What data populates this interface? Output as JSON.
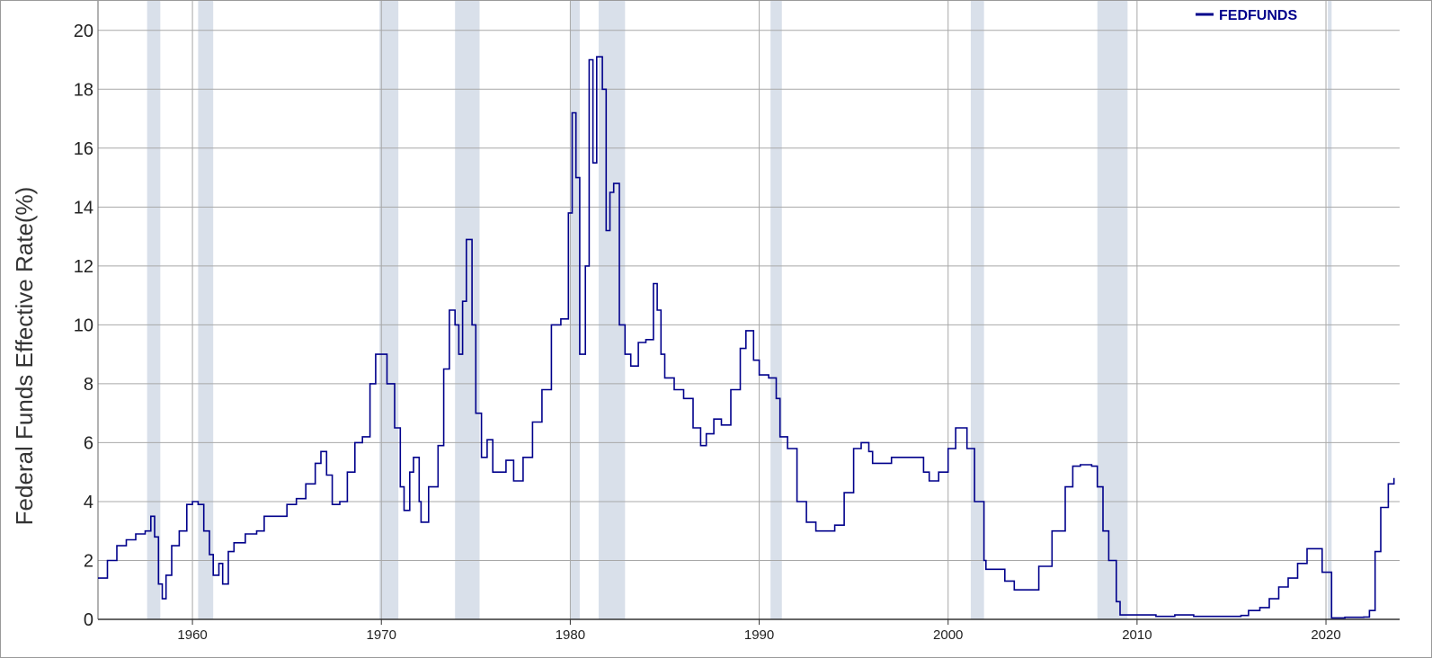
{
  "chart_data": {
    "type": "line",
    "title": "",
    "xlabel": "",
    "ylabel": "Federal Funds Effective Rate(%)",
    "xlim": [
      1955.0,
      2023.9
    ],
    "ylim": [
      0,
      21
    ],
    "x_ticks": [
      1960,
      1970,
      1980,
      1990,
      2000,
      2010,
      2020
    ],
    "y_ticks": [
      0,
      2,
      4,
      6,
      8,
      10,
      12,
      14,
      16,
      18,
      20
    ],
    "grid": true,
    "legend": "top-right",
    "recession_color": "#d9e0ea",
    "line_color": "#00008b",
    "recessions": [
      [
        1957.6,
        1958.3
      ],
      [
        1960.3,
        1961.1
      ],
      [
        1969.9,
        1970.9
      ],
      [
        1973.9,
        1975.2
      ],
      [
        1980.0,
        1980.5
      ],
      [
        1981.5,
        1982.9
      ],
      [
        1990.6,
        1991.2
      ],
      [
        2001.2,
        2001.9
      ],
      [
        2007.9,
        2009.5
      ],
      [
        2020.1,
        2020.3
      ]
    ],
    "series": [
      {
        "name": "FEDFUNDS",
        "points": [
          [
            1955.0,
            1.4
          ],
          [
            1955.5,
            2.0
          ],
          [
            1956.0,
            2.5
          ],
          [
            1956.5,
            2.7
          ],
          [
            1957.0,
            2.9
          ],
          [
            1957.5,
            3.0
          ],
          [
            1957.8,
            3.5
          ],
          [
            1958.0,
            2.8
          ],
          [
            1958.2,
            1.2
          ],
          [
            1958.4,
            0.7
          ],
          [
            1958.6,
            1.5
          ],
          [
            1958.9,
            2.5
          ],
          [
            1959.3,
            3.0
          ],
          [
            1959.7,
            3.9
          ],
          [
            1960.0,
            4.0
          ],
          [
            1960.3,
            3.9
          ],
          [
            1960.6,
            3.0
          ],
          [
            1960.9,
            2.2
          ],
          [
            1961.1,
            1.5
          ],
          [
            1961.4,
            1.9
          ],
          [
            1961.6,
            1.2
          ],
          [
            1961.9,
            2.3
          ],
          [
            1962.2,
            2.6
          ],
          [
            1962.8,
            2.9
          ],
          [
            1963.4,
            3.0
          ],
          [
            1963.8,
            3.5
          ],
          [
            1964.5,
            3.5
          ],
          [
            1965.0,
            3.9
          ],
          [
            1965.5,
            4.1
          ],
          [
            1966.0,
            4.6
          ],
          [
            1966.5,
            5.3
          ],
          [
            1966.8,
            5.7
          ],
          [
            1967.1,
            4.9
          ],
          [
            1967.4,
            3.9
          ],
          [
            1967.8,
            4.0
          ],
          [
            1968.2,
            5.0
          ],
          [
            1968.6,
            6.0
          ],
          [
            1969.0,
            6.2
          ],
          [
            1969.4,
            8.0
          ],
          [
            1969.7,
            9.0
          ],
          [
            1970.0,
            9.0
          ],
          [
            1970.3,
            8.0
          ],
          [
            1970.7,
            6.5
          ],
          [
            1971.0,
            4.5
          ],
          [
            1971.2,
            3.7
          ],
          [
            1971.5,
            5.0
          ],
          [
            1971.7,
            5.5
          ],
          [
            1972.0,
            4.0
          ],
          [
            1972.1,
            3.3
          ],
          [
            1972.5,
            4.5
          ],
          [
            1973.0,
            5.9
          ],
          [
            1973.3,
            8.5
          ],
          [
            1973.6,
            10.5
          ],
          [
            1973.9,
            10.0
          ],
          [
            1974.1,
            9.0
          ],
          [
            1974.3,
            10.8
          ],
          [
            1974.5,
            12.9
          ],
          [
            1974.8,
            10.0
          ],
          [
            1975.0,
            7.0
          ],
          [
            1975.3,
            5.5
          ],
          [
            1975.6,
            6.1
          ],
          [
            1975.9,
            5.0
          ],
          [
            1976.3,
            5.0
          ],
          [
            1976.6,
            5.4
          ],
          [
            1977.0,
            4.7
          ],
          [
            1977.5,
            5.5
          ],
          [
            1978.0,
            6.7
          ],
          [
            1978.5,
            7.8
          ],
          [
            1979.0,
            10.0
          ],
          [
            1979.5,
            10.2
          ],
          [
            1979.9,
            13.8
          ],
          [
            1980.1,
            17.2
          ],
          [
            1980.3,
            15.0
          ],
          [
            1980.5,
            9.0
          ],
          [
            1980.8,
            12.0
          ],
          [
            1981.0,
            19.0
          ],
          [
            1981.2,
            15.5
          ],
          [
            1981.4,
            19.1
          ],
          [
            1981.7,
            18.0
          ],
          [
            1981.9,
            13.2
          ],
          [
            1982.1,
            14.5
          ],
          [
            1982.3,
            14.8
          ],
          [
            1982.6,
            10.0
          ],
          [
            1982.9,
            9.0
          ],
          [
            1983.2,
            8.6
          ],
          [
            1983.6,
            9.4
          ],
          [
            1984.0,
            9.5
          ],
          [
            1984.4,
            11.4
          ],
          [
            1984.6,
            10.5
          ],
          [
            1984.8,
            9.0
          ],
          [
            1985.0,
            8.2
          ],
          [
            1985.5,
            7.8
          ],
          [
            1986.0,
            7.5
          ],
          [
            1986.5,
            6.5
          ],
          [
            1986.9,
            5.9
          ],
          [
            1987.2,
            6.3
          ],
          [
            1987.6,
            6.8
          ],
          [
            1988.0,
            6.6
          ],
          [
            1988.5,
            7.8
          ],
          [
            1989.0,
            9.2
          ],
          [
            1989.3,
            9.8
          ],
          [
            1989.7,
            8.8
          ],
          [
            1990.0,
            8.3
          ],
          [
            1990.5,
            8.2
          ],
          [
            1990.9,
            7.5
          ],
          [
            1991.1,
            6.2
          ],
          [
            1991.5,
            5.8
          ],
          [
            1992.0,
            4.0
          ],
          [
            1992.5,
            3.3
          ],
          [
            1993.0,
            3.0
          ],
          [
            1993.5,
            3.0
          ],
          [
            1994.0,
            3.2
          ],
          [
            1994.5,
            4.3
          ],
          [
            1995.0,
            5.8
          ],
          [
            1995.4,
            6.0
          ],
          [
            1995.8,
            5.7
          ],
          [
            1996.0,
            5.3
          ],
          [
            1997.0,
            5.5
          ],
          [
            1997.5,
            5.5
          ],
          [
            1998.2,
            5.5
          ],
          [
            1998.7,
            5.0
          ],
          [
            1999.0,
            4.7
          ],
          [
            1999.5,
            5.0
          ],
          [
            2000.0,
            5.8
          ],
          [
            2000.4,
            6.5
          ],
          [
            2000.8,
            6.5
          ],
          [
            2001.0,
            5.8
          ],
          [
            2001.4,
            4.0
          ],
          [
            2001.9,
            2.0
          ],
          [
            2002.0,
            1.7
          ],
          [
            2002.5,
            1.7
          ],
          [
            2003.0,
            1.3
          ],
          [
            2003.5,
            1.0
          ],
          [
            2004.4,
            1.0
          ],
          [
            2004.8,
            1.8
          ],
          [
            2005.5,
            3.0
          ],
          [
            2006.2,
            4.5
          ],
          [
            2006.6,
            5.2
          ],
          [
            2007.0,
            5.25
          ],
          [
            2007.6,
            5.2
          ],
          [
            2007.9,
            4.5
          ],
          [
            2008.2,
            3.0
          ],
          [
            2008.5,
            2.0
          ],
          [
            2008.9,
            0.6
          ],
          [
            2009.1,
            0.15
          ],
          [
            2010.0,
            0.15
          ],
          [
            2011.0,
            0.1
          ],
          [
            2012.0,
            0.15
          ],
          [
            2013.0,
            0.1
          ],
          [
            2014.0,
            0.1
          ],
          [
            2015.5,
            0.13
          ],
          [
            2015.9,
            0.3
          ],
          [
            2016.5,
            0.4
          ],
          [
            2017.0,
            0.7
          ],
          [
            2017.5,
            1.1
          ],
          [
            2018.0,
            1.4
          ],
          [
            2018.5,
            1.9
          ],
          [
            2019.0,
            2.4
          ],
          [
            2019.5,
            2.4
          ],
          [
            2019.8,
            1.6
          ],
          [
            2020.1,
            1.6
          ],
          [
            2020.3,
            0.05
          ],
          [
            2021.0,
            0.07
          ],
          [
            2022.0,
            0.08
          ],
          [
            2022.3,
            0.3
          ],
          [
            2022.6,
            2.3
          ],
          [
            2022.9,
            3.8
          ],
          [
            2023.3,
            4.6
          ],
          [
            2023.6,
            4.8
          ]
        ]
      }
    ]
  }
}
